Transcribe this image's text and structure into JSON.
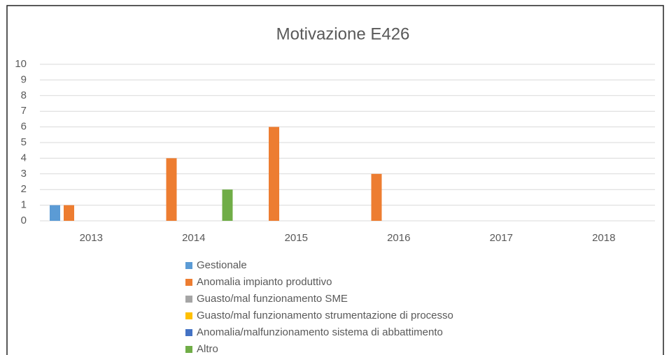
{
  "chart_data": {
    "type": "bar",
    "title": "Motivazione E426",
    "categories": [
      "2013",
      "2014",
      "2015",
      "2016",
      "2017",
      "2018"
    ],
    "series": [
      {
        "name": "Gestionale",
        "color": "#5b9bd5",
        "values": [
          1,
          0,
          0,
          0,
          0,
          0
        ]
      },
      {
        "name": "Anomalia impianto produttivo",
        "color": "#ed7d31",
        "values": [
          1,
          4,
          6,
          3,
          0,
          0
        ]
      },
      {
        "name": "Guasto/mal funzionamento SME",
        "color": "#a5a5a5",
        "values": [
          0,
          0,
          0,
          0,
          0,
          0
        ]
      },
      {
        "name": "Guasto/mal funzionamento strumentazione di processo",
        "color": "#ffc000",
        "values": [
          0,
          0,
          0,
          0,
          0,
          0
        ]
      },
      {
        "name": "Anomalia/malfunzionamento sistema di abbattimento",
        "color": "#4472c4",
        "values": [
          0,
          0,
          0,
          0,
          0,
          0
        ]
      },
      {
        "name": "Altro",
        "color": "#70ad47",
        "values": [
          0,
          2,
          0,
          0,
          0,
          0
        ]
      }
    ],
    "ylim": [
      0,
      10
    ],
    "yticks": [
      0,
      1,
      2,
      3,
      4,
      5,
      6,
      7,
      8,
      9,
      10
    ],
    "grid": true,
    "legend": "bottom"
  }
}
